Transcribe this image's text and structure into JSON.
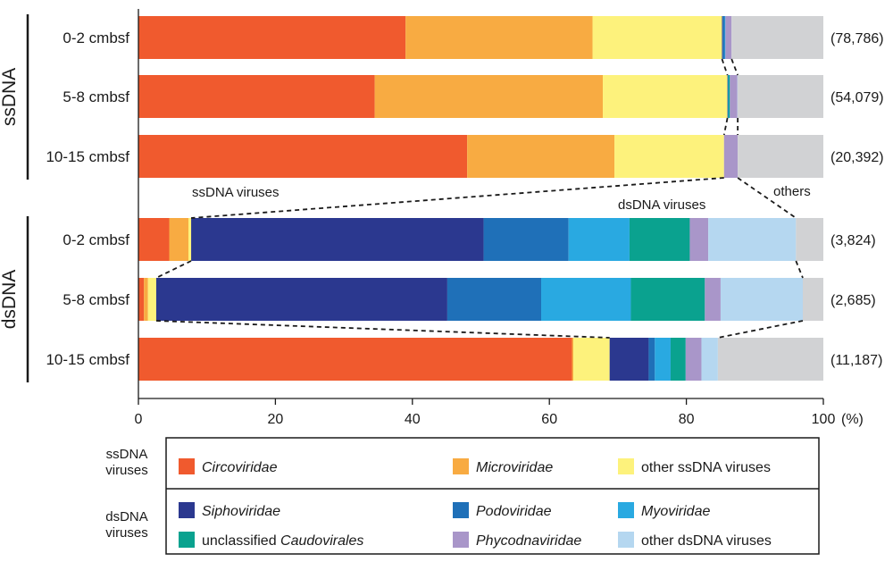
{
  "chart_data": {
    "type": "stacked-horizontal-bar",
    "xlabel_unit": "(%)",
    "xlim": [
      0,
      100
    ],
    "xticks": [
      "0",
      "20",
      "40",
      "60",
      "80",
      "100"
    ],
    "categories_order": [
      "Circoviridae",
      "Microviridae",
      "other ssDNA viruses",
      "Siphoviridae",
      "Podoviridae",
      "Myoviridae",
      "unclassified Caudovirales",
      "Phycodnaviridae",
      "other dsDNA viruses",
      "others"
    ],
    "colors": {
      "Circoviridae": "#f05a2e",
      "Microviridae": "#f8ab42",
      "other ssDNA viruses": "#fdf27c",
      "Siphoviridae": "#2b388f",
      "Podoviridae": "#1f70b8",
      "Myoviridae": "#29a9e1",
      "unclassified Caudovirales": "#0aa28f",
      "Phycodnaviridae": "#a996c9",
      "other dsDNA viruses": "#b5d7f0",
      "others": "#d1d2d4"
    },
    "groups": [
      {
        "name": "ssDNA",
        "rows": [
          {
            "label": "0-2 cmbsf",
            "count": "(78,786)",
            "values": {
              "Circoviridae": 39.0,
              "Microviridae": 27.3,
              "other ssDNA viruses": 18.9,
              "Siphoviridae": 0.1,
              "Podoviridae": 0.3,
              "Myoviridae": 0.1,
              "unclassified Caudovirales": 0.0,
              "Phycodnaviridae": 0.9,
              "other dsDNA viruses": 0.0,
              "others": 13.4
            }
          },
          {
            "label": "5-8 cmbsf",
            "count": "(54,079)",
            "values": {
              "Circoviridae": 34.5,
              "Microviridae": 33.3,
              "other ssDNA viruses": 18.2,
              "Siphoviridae": 0.05,
              "Podoviridae": 0.05,
              "Myoviridae": 0.05,
              "unclassified Caudovirales": 0.2,
              "Phycodnaviridae": 1.1,
              "other dsDNA viruses": 0.05,
              "others": 12.5
            }
          },
          {
            "label": "10-15 cmbsf",
            "count": "(20,392)",
            "values": {
              "Circoviridae": 48.0,
              "Microviridae": 21.5,
              "other ssDNA viruses": 16.0,
              "Siphoviridae": 0.0,
              "Podoviridae": 0.0,
              "Myoviridae": 0.0,
              "unclassified Caudovirales": 0.0,
              "Phycodnaviridae": 2.0,
              "other dsDNA viruses": 0.0,
              "others": 12.5
            }
          }
        ]
      },
      {
        "name": "dsDNA",
        "rows": [
          {
            "label": "0-2 cmbsf",
            "count": "(3,824)",
            "values": {
              "Circoviridae": 4.5,
              "Microviridae": 2.8,
              "other ssDNA viruses": 0.4,
              "Siphoviridae": 42.7,
              "Podoviridae": 12.4,
              "Myoviridae": 8.9,
              "unclassified Caudovirales": 8.8,
              "Phycodnaviridae": 2.7,
              "other dsDNA viruses": 12.8,
              "others": 4.0
            }
          },
          {
            "label": "5-8 cmbsf",
            "count": "(2,685)",
            "values": {
              "Circoviridae": 0.8,
              "Microviridae": 0.6,
              "other ssDNA viruses": 1.2,
              "Siphoviridae": 42.5,
              "Podoviridae": 13.7,
              "Myoviridae": 13.1,
              "unclassified Caudovirales": 10.8,
              "Phycodnaviridae": 2.3,
              "other dsDNA viruses": 12.0,
              "others": 3.0
            }
          },
          {
            "label": "10-15 cmbsf",
            "count": "(11,187)",
            "values": {
              "Circoviridae": 63.3,
              "Microviridae": 0.2,
              "other ssDNA viruses": 5.3,
              "Siphoviridae": 5.7,
              "Podoviridae": 0.9,
              "Myoviridae": 2.3,
              "unclassified Caudovirales": 2.2,
              "Phycodnaviridae": 2.3,
              "other dsDNA viruses": 2.4,
              "others": 15.4
            }
          }
        ]
      }
    ],
    "annotations": [
      "ssDNA viruses",
      "dsDNA viruses",
      "others"
    ],
    "legend": {
      "placement": "bottom",
      "sections": [
        {
          "header": [
            "ssDNA",
            "viruses"
          ],
          "entries": [
            {
              "name": "Circoviridae",
              "prefix": "",
              "italic": "Circoviridae"
            },
            {
              "name": "Microviridae",
              "prefix": "",
              "italic": "Microviridae"
            },
            {
              "name": "other ssDNA viruses",
              "prefix": "other ssDNA viruses",
              "italic": ""
            }
          ]
        },
        {
          "header": [
            "dsDNA",
            "viruses"
          ],
          "entries": [
            {
              "name": "Siphoviridae",
              "prefix": "",
              "italic": "Siphoviridae"
            },
            {
              "name": "Podoviridae",
              "prefix": "",
              "italic": "Podoviridae"
            },
            {
              "name": "Myoviridae",
              "prefix": "",
              "italic": "Myoviridae"
            },
            {
              "name": "unclassified Caudovirales",
              "prefix": "unclassified ",
              "italic": "Caudovirales"
            },
            {
              "name": "Phycodnaviridae",
              "prefix": "",
              "italic": "Phycodnaviridae"
            },
            {
              "name": "other dsDNA viruses",
              "prefix": "other dsDNA viruses",
              "italic": ""
            }
          ]
        }
      ]
    }
  }
}
